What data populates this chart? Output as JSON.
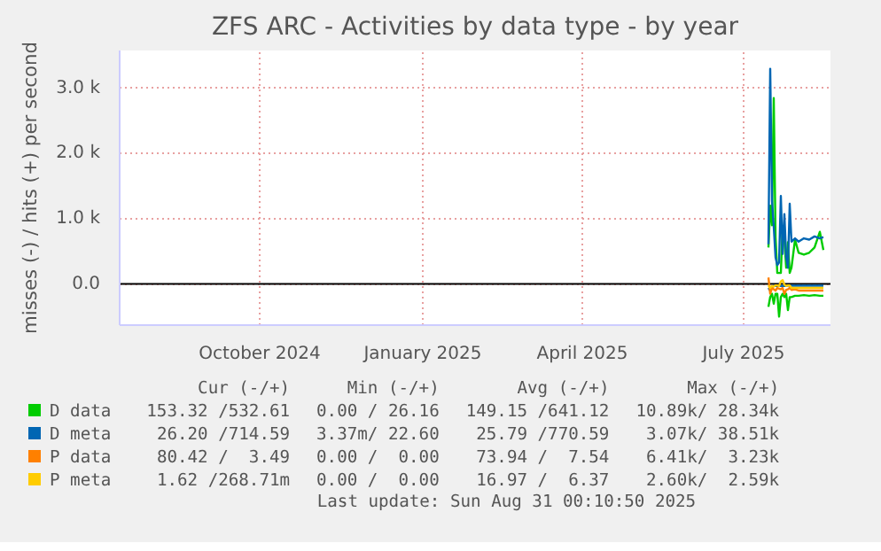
{
  "chart_data": {
    "type": "line",
    "title": "ZFS ARC - Activities by data type - by year",
    "ylabel": "misses (-) / hits (+) per second",
    "x": [
      "2025-07-30",
      "2025-07-31",
      "2025-08-01",
      "2025-08-02",
      "2025-08-03",
      "2025-08-04",
      "2025-08-05",
      "2025-08-06",
      "2025-08-07",
      "2025-08-08",
      "2025-08-09",
      "2025-08-10",
      "2025-08-11",
      "2025-08-12",
      "2025-08-14",
      "2025-08-16",
      "2025-08-19",
      "2025-08-22",
      "2025-08-25",
      "2025-08-28",
      "2025-08-30"
    ],
    "series": [
      {
        "name": "D data",
        "color": "#00cc00",
        "values": [
          560,
          1200,
          900,
          2850,
          720,
          170,
          170,
          170,
          880,
          700,
          250,
          640,
          170,
          250,
          680,
          480,
          450,
          480,
          560,
          800,
          520
        ]
      },
      {
        "color": "#00cc00",
        "values": [
          -350,
          -200,
          -150,
          -300,
          -150,
          -150,
          -500,
          -200,
          -150,
          -200,
          -150,
          -400,
          -200,
          -200,
          -180,
          -180,
          -170,
          -180,
          -170,
          -180,
          -180
        ]
      },
      {
        "name": "D meta",
        "color": "#0066b3",
        "values": [
          610,
          3300,
          1280,
          880,
          410,
          290,
          330,
          1350,
          460,
          1070,
          410,
          250,
          1230,
          650,
          700,
          650,
          700,
          680,
          730,
          700,
          720
        ]
      },
      {
        "color": "#0066b3",
        "values": [
          -60,
          -100,
          -50,
          -30,
          -30,
          -30,
          -20,
          -30,
          -30,
          -30,
          -30,
          -20,
          -25,
          -25,
          -25,
          -25,
          -25,
          -25,
          -25,
          -25,
          -25
        ]
      },
      {
        "name": "P data",
        "color": "#ff8000",
        "values": [
          100,
          -150,
          -60,
          -80,
          -100,
          -60,
          -70,
          -80,
          -60,
          -150,
          -90,
          -80,
          -60,
          -90,
          -80,
          -100,
          -100,
          -100,
          -100,
          -100,
          -100
        ]
      },
      {
        "name": "P meta",
        "color": "#ffcc00",
        "values": [
          -20,
          -60,
          -30,
          -40,
          -20,
          -20,
          -30,
          40,
          60,
          -10,
          -30,
          -20,
          -20,
          -60,
          -60,
          -60,
          -60,
          -60,
          -60,
          -60,
          -60
        ]
      }
    ],
    "xlim": [
      "2024-07-29",
      "2025-09-03"
    ],
    "xticks": [
      {
        "value": "2024-10-16",
        "label": "October 2024"
      },
      {
        "value": "2025-01-16",
        "label": "January 2025"
      },
      {
        "value": "2025-04-16",
        "label": "April 2025"
      },
      {
        "value": "2025-07-16",
        "label": "July 2025"
      }
    ],
    "ylim": [
      -630,
      3580
    ],
    "yticks": [
      {
        "value": 0,
        "label": "0.0"
      },
      {
        "value": 1000,
        "label": "1.0 k"
      },
      {
        "value": 2000,
        "label": "2.0 k"
      },
      {
        "value": 3000,
        "label": "3.0 k"
      }
    ],
    "ref_lines": [
      {
        "axis": "y",
        "value": 0,
        "color": "#000000"
      }
    ],
    "grid": true,
    "legend": "bottom",
    "line_style": "solid",
    "marker": "none",
    "annotations": [
      "Cur (-/+)",
      "Min (-/+)",
      "Avg (-/+)",
      "Max (-/+)",
      "153.32 /532.61",
      "0.00 / 26.16",
      "149.15 /641.12",
      "10.89k/ 28.34k",
      "26.20 /714.59",
      "3.37m/ 22.60",
      "25.79 /770.59",
      "3.07k/ 38.51k",
      "80.42 /  3.49",
      "0.00 /  0.00",
      "73.94 /  7.54",
      "6.41k/  3.23k",
      "1.62 /268.71m",
      "0.00 /  0.00",
      "16.97 /  6.37",
      "2.60k/  2.59k",
      "Last update: Sun Aug 31 00:10:50 2025"
    ]
  }
}
